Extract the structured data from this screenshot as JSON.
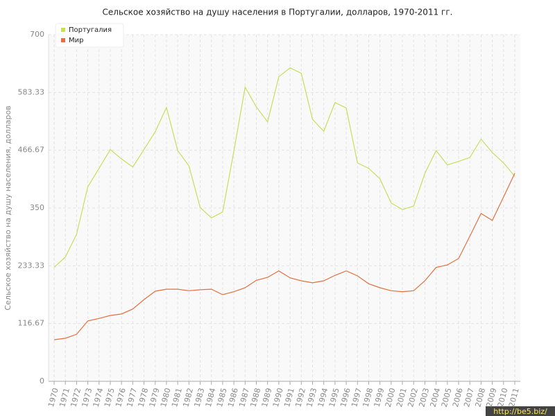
{
  "chart_data": {
    "type": "line",
    "title": "Сельское хозяйство на душу населения в Португалии, долларов, 1970-2011 гг.",
    "y_label": "Сельское хозяйство на душу населения, долларов",
    "watermark": "http://be5.biz/",
    "x": [
      1970,
      1971,
      1972,
      1973,
      1974,
      1975,
      1976,
      1977,
      1978,
      1979,
      1980,
      1981,
      1982,
      1983,
      1984,
      1985,
      1986,
      1987,
      1988,
      1989,
      1990,
      1991,
      1992,
      1993,
      1994,
      1995,
      1996,
      1997,
      1998,
      1999,
      2000,
      2001,
      2002,
      2003,
      2004,
      2005,
      2006,
      2007,
      2008,
      2009,
      2010,
      2011
    ],
    "xlim": [
      1970,
      2011
    ],
    "ylim": [
      0,
      700
    ],
    "yticks": [
      0,
      116.67,
      233.33,
      350,
      466.67,
      583.33,
      700
    ],
    "grid": true,
    "legend": "top-left",
    "series": [
      {
        "name": "Португалия",
        "color": "#c5df5a",
        "values": [
          230,
          251,
          297,
          393,
          430,
          468,
          449,
          433,
          468,
          504,
          553,
          466,
          435,
          351,
          330,
          342,
          465,
          594,
          554,
          524,
          615,
          633,
          622,
          529,
          505,
          563,
          552,
          441,
          430,
          409,
          360,
          347,
          354,
          420,
          466,
          437,
          444,
          452,
          489,
          462,
          441,
          414
        ]
      },
      {
        "name": "Мир",
        "color": "#e0703f",
        "values": [
          84,
          87,
          95,
          122,
          127,
          133,
          136,
          146,
          165,
          182,
          186,
          186,
          183,
          185,
          186,
          175,
          181,
          189,
          204,
          210,
          223,
          209,
          203,
          199,
          203,
          214,
          223,
          213,
          197,
          189,
          183,
          181,
          183,
          203,
          230,
          235,
          248,
          293,
          339,
          325,
          372,
          420
        ]
      }
    ]
  }
}
